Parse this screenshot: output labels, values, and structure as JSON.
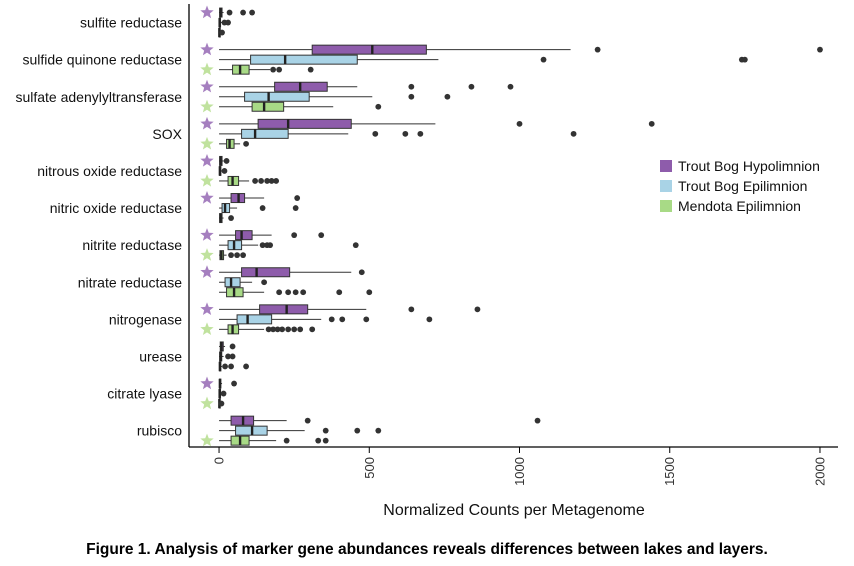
{
  "caption": "Figure 1. Analysis of marker gene abundances reveals differences between lakes and layers.",
  "chart_data": {
    "type": "boxplot",
    "orientation": "horizontal",
    "xlabel": "Normalized Counts per Metagenome",
    "xlim": [
      -100,
      2060
    ],
    "xticks": [
      0,
      500,
      1000,
      1500,
      2000
    ],
    "grid": false,
    "legend_position": "right",
    "series": [
      {
        "name": "Trout Bog Hypolimnion",
        "color": "#8e5cab",
        "star_color": "#a57fbf"
      },
      {
        "name": "Trout Bog Epilimnion",
        "color": "#a9d3e6"
      },
      {
        "name": "Mendota Epilimnion",
        "color": "#a8da86",
        "star_color": "#c0e29e"
      }
    ],
    "categories": [
      {
        "label": "sulfite reductase",
        "stars": [
          0
        ],
        "boxes": [
          {
            "series": 0,
            "whisker_low": 0,
            "q1": 2,
            "median": 5,
            "q3": 10,
            "whisker_high": 15,
            "outliers": [
              35,
              80,
              110
            ]
          },
          {
            "series": 1,
            "whisker_low": 0,
            "q1": 1,
            "median": 2,
            "q3": 5,
            "whisker_high": 10,
            "outliers": [
              18,
              30
            ]
          },
          {
            "series": 2,
            "whisker_low": 0,
            "q1": 0,
            "median": 1,
            "q3": 2,
            "whisker_high": 5,
            "outliers": [
              10
            ]
          }
        ]
      },
      {
        "label": "sulfide quinone reductase",
        "stars": [
          0,
          2
        ],
        "boxes": [
          {
            "series": 0,
            "whisker_low": 0,
            "q1": 310,
            "median": 510,
            "q3": 690,
            "whisker_high": 1170,
            "outliers": [
              1260,
              2000
            ]
          },
          {
            "series": 1,
            "whisker_low": 0,
            "q1": 105,
            "median": 220,
            "q3": 460,
            "whisker_high": 730,
            "outliers": [
              1080,
              1740,
              1750
            ]
          },
          {
            "series": 2,
            "whisker_low": 0,
            "q1": 45,
            "median": 70,
            "q3": 100,
            "whisker_high": 170,
            "outliers": [
              180,
              200,
              305
            ]
          }
        ]
      },
      {
        "label": "sulfate adenylyltransferase",
        "stars": [
          0,
          2
        ],
        "boxes": [
          {
            "series": 0,
            "whisker_low": 0,
            "q1": 185,
            "median": 270,
            "q3": 360,
            "whisker_high": 460,
            "outliers": [
              640,
              840,
              970
            ]
          },
          {
            "series": 1,
            "whisker_low": 0,
            "q1": 85,
            "median": 165,
            "q3": 300,
            "whisker_high": 510,
            "outliers": [
              640,
              760
            ]
          },
          {
            "series": 2,
            "whisker_low": 0,
            "q1": 110,
            "median": 150,
            "q3": 215,
            "whisker_high": 380,
            "outliers": [
              530
            ]
          }
        ]
      },
      {
        "label": "SOX",
        "stars": [
          0,
          2
        ],
        "boxes": [
          {
            "series": 0,
            "whisker_low": 0,
            "q1": 130,
            "median": 230,
            "q3": 440,
            "whisker_high": 720,
            "outliers": [
              1000,
              1440
            ]
          },
          {
            "series": 1,
            "whisker_low": 0,
            "q1": 75,
            "median": 120,
            "q3": 230,
            "whisker_high": 430,
            "outliers": [
              520,
              620,
              670,
              1180
            ]
          },
          {
            "series": 2,
            "whisker_low": 0,
            "q1": 25,
            "median": 35,
            "q3": 50,
            "whisker_high": 70,
            "outliers": [
              90
            ]
          }
        ]
      },
      {
        "label": "nitrous oxide reductase",
        "stars": [
          0,
          2
        ],
        "boxes": [
          {
            "series": 0,
            "whisker_low": 0,
            "q1": 2,
            "median": 5,
            "q3": 10,
            "whisker_high": 15,
            "outliers": [
              25
            ]
          },
          {
            "series": 1,
            "whisker_low": 0,
            "q1": 1,
            "median": 3,
            "q3": 6,
            "whisker_high": 10,
            "outliers": [
              18
            ]
          },
          {
            "series": 2,
            "whisker_low": 0,
            "q1": 30,
            "median": 45,
            "q3": 65,
            "whisker_high": 100,
            "outliers": [
              120,
              140,
              160,
              175,
              190
            ]
          }
        ]
      },
      {
        "label": "nitric oxide reductase",
        "stars": [
          0
        ],
        "boxes": [
          {
            "series": 0,
            "whisker_low": 0,
            "q1": 40,
            "median": 65,
            "q3": 85,
            "whisker_high": 150,
            "outliers": [
              260
            ]
          },
          {
            "series": 1,
            "whisker_low": 0,
            "q1": 10,
            "median": 20,
            "q3": 35,
            "whisker_high": 60,
            "outliers": [
              145,
              255
            ]
          },
          {
            "series": 2,
            "whisker_low": 0,
            "q1": 2,
            "median": 5,
            "q3": 10,
            "whisker_high": 15,
            "outliers": [
              40
            ]
          }
        ]
      },
      {
        "label": "nitrite reductase",
        "stars": [
          0,
          2
        ],
        "boxes": [
          {
            "series": 0,
            "whisker_low": 0,
            "q1": 55,
            "median": 75,
            "q3": 110,
            "whisker_high": 175,
            "outliers": [
              250,
              340
            ]
          },
          {
            "series": 1,
            "whisker_low": 0,
            "q1": 30,
            "median": 50,
            "q3": 75,
            "whisker_high": 130,
            "outliers": [
              145,
              160,
              170,
              455
            ]
          },
          {
            "series": 2,
            "whisker_low": 0,
            "q1": 3,
            "median": 8,
            "q3": 15,
            "whisker_high": 25,
            "outliers": [
              40,
              60,
              80
            ]
          }
        ]
      },
      {
        "label": "nitrate reductase",
        "stars": [
          0
        ],
        "boxes": [
          {
            "series": 0,
            "whisker_low": 0,
            "q1": 75,
            "median": 125,
            "q3": 235,
            "whisker_high": 440,
            "outliers": [
              475
            ]
          },
          {
            "series": 1,
            "whisker_low": 0,
            "q1": 20,
            "median": 40,
            "q3": 70,
            "whisker_high": 110,
            "outliers": [
              150
            ]
          },
          {
            "series": 2,
            "whisker_low": 0,
            "q1": 25,
            "median": 50,
            "q3": 80,
            "whisker_high": 150,
            "outliers": [
              200,
              230,
              255,
              280,
              400,
              500
            ]
          }
        ]
      },
      {
        "label": "nitrogenase",
        "stars": [
          0,
          2
        ],
        "boxes": [
          {
            "series": 0,
            "whisker_low": 0,
            "q1": 135,
            "median": 225,
            "q3": 295,
            "whisker_high": 490,
            "outliers": [
              640,
              860
            ]
          },
          {
            "series": 1,
            "whisker_low": 0,
            "q1": 60,
            "median": 95,
            "q3": 175,
            "whisker_high": 340,
            "outliers": [
              375,
              410,
              490,
              700
            ]
          },
          {
            "series": 2,
            "whisker_low": 0,
            "q1": 30,
            "median": 45,
            "q3": 65,
            "whisker_high": 150,
            "outliers": [
              165,
              180,
              195,
              210,
              230,
              250,
              270,
              310
            ]
          }
        ]
      },
      {
        "label": "urease",
        "stars": [],
        "boxes": [
          {
            "series": 0,
            "whisker_low": 0,
            "q1": 4,
            "median": 8,
            "q3": 14,
            "whisker_high": 20,
            "outliers": [
              45
            ]
          },
          {
            "series": 1,
            "whisker_low": 0,
            "q1": 2,
            "median": 5,
            "q3": 9,
            "whisker_high": 15,
            "outliers": [
              30,
              45
            ]
          },
          {
            "series": 2,
            "whisker_low": 0,
            "q1": 1,
            "median": 3,
            "q3": 6,
            "whisker_high": 10,
            "outliers": [
              20,
              40,
              90
            ]
          }
        ]
      },
      {
        "label": "citrate lyase",
        "stars": [
          0,
          2
        ],
        "boxes": [
          {
            "series": 0,
            "whisker_low": 0,
            "q1": 1,
            "median": 3,
            "q3": 6,
            "whisker_high": 10,
            "outliers": [
              50
            ]
          },
          {
            "series": 1,
            "whisker_low": 0,
            "q1": 1,
            "median": 2,
            "q3": 4,
            "whisker_high": 8,
            "outliers": [
              15
            ]
          },
          {
            "series": 2,
            "whisker_low": 0,
            "q1": 0,
            "median": 1,
            "q3": 2,
            "whisker_high": 4,
            "outliers": [
              8
            ]
          }
        ]
      },
      {
        "label": "rubisco",
        "stars": [
          2
        ],
        "boxes": [
          {
            "series": 0,
            "whisker_low": 0,
            "q1": 40,
            "median": 80,
            "q3": 115,
            "whisker_high": 225,
            "outliers": [
              295,
              1060
            ]
          },
          {
            "series": 1,
            "whisker_low": 0,
            "q1": 55,
            "median": 110,
            "q3": 160,
            "whisker_high": 285,
            "outliers": [
              355,
              460,
              530
            ]
          },
          {
            "series": 2,
            "whisker_low": 0,
            "q1": 40,
            "median": 70,
            "q3": 100,
            "whisker_high": 190,
            "outliers": [
              225,
              330,
              355
            ]
          }
        ]
      }
    ]
  }
}
